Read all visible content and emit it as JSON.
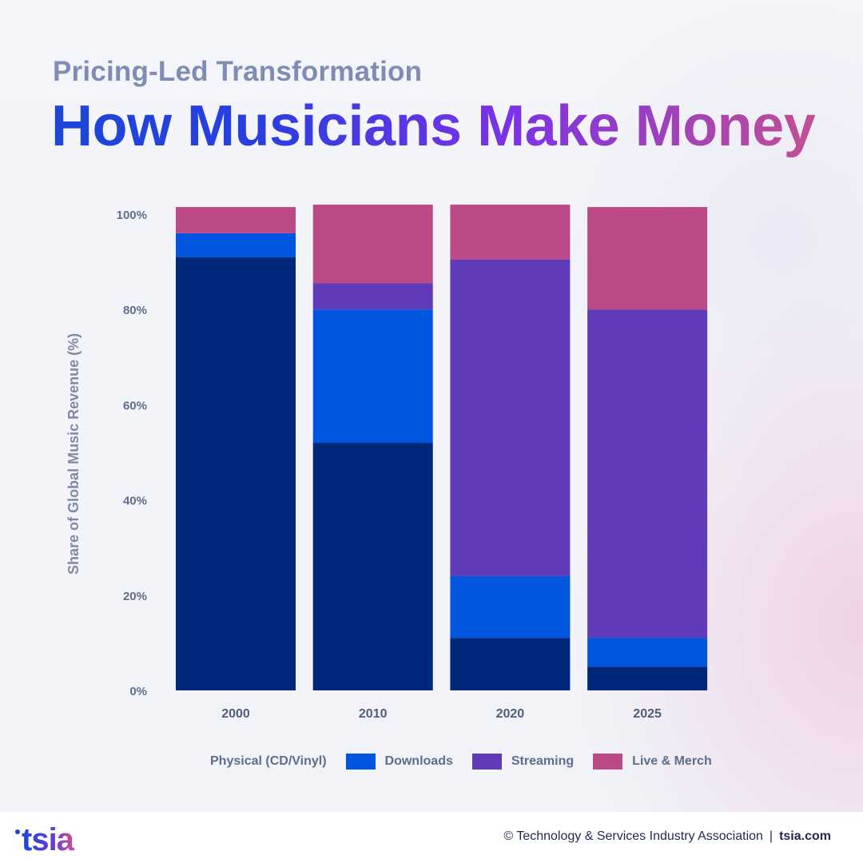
{
  "header": {
    "subtitle": "Pricing-Led Transformation",
    "title": "How Musicians Make Money"
  },
  "chart_data": {
    "type": "bar",
    "stacked": true,
    "categories": [
      "2000",
      "2010",
      "2020",
      "2025"
    ],
    "series": [
      {
        "name": "Physical (CD/Vinyl)",
        "color": "#00287a",
        "values": [
          91,
          52,
          11,
          5
        ]
      },
      {
        "name": "Downloads",
        "color": "#0056de",
        "values": [
          5,
          28,
          13,
          6
        ]
      },
      {
        "name": "Streaming",
        "color": "#5f3bba",
        "values": [
          0,
          5.5,
          66.5,
          69
        ]
      },
      {
        "name": "Live & Merch",
        "color": "#bb4a86",
        "values": [
          5.5,
          16.5,
          11.5,
          21.5
        ]
      }
    ],
    "ylabel": "Share of Global Music Revenue (%)",
    "xlabel": "",
    "ylim": [
      0,
      100
    ],
    "yticks": [
      0,
      20,
      40,
      60,
      80,
      100
    ],
    "ytick_suffix": "%",
    "grid": false,
    "legend": "bottom"
  },
  "footer": {
    "logo_text": "tsia",
    "copyright": "© Technology & Services Industry Association",
    "separator": "|",
    "website": "tsia.com"
  }
}
